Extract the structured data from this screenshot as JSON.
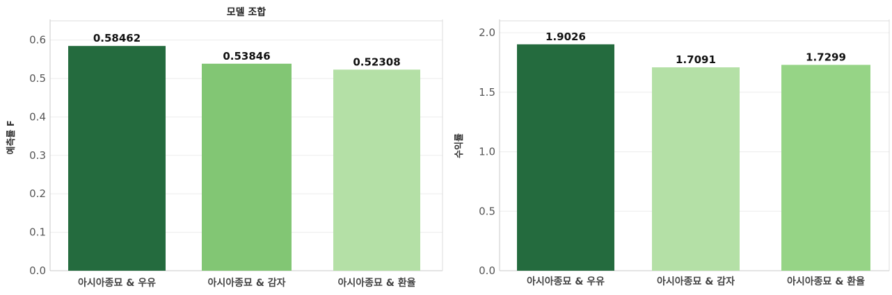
{
  "chart_data": [
    {
      "type": "bar",
      "title": "모델 조합",
      "ylabel": "예측률 F",
      "categories": [
        "아시아종묘 & 우유",
        "아시아종묘 & 감자",
        "아시아종묘 & 환율"
      ],
      "values": [
        0.58462,
        0.53846,
        0.52308
      ],
      "value_labels": [
        "0.58462",
        "0.53846",
        "0.52308"
      ],
      "colors": [
        "#246b3e",
        "#82c674",
        "#b4e0a6"
      ],
      "yticks": [
        "0.0",
        "0.1",
        "0.2",
        "0.3",
        "0.4",
        "0.5",
        "0.6"
      ],
      "ylim": [
        0,
        0.65
      ],
      "grid": true
    },
    {
      "type": "bar",
      "title": "",
      "ylabel": "수익률",
      "categories": [
        "아시아종묘 & 우유",
        "아시아종묘 & 감자",
        "아시아종묘 & 환율"
      ],
      "values": [
        1.9026,
        1.7091,
        1.7299
      ],
      "value_labels": [
        "1.9026",
        "1.7091",
        "1.7299"
      ],
      "colors": [
        "#246b3e",
        "#b4e0a6",
        "#96d486"
      ],
      "yticks": [
        "0.0",
        "0.5",
        "1.0",
        "1.5",
        "2.0"
      ],
      "ylim": [
        0,
        2.1
      ],
      "grid": true
    }
  ]
}
